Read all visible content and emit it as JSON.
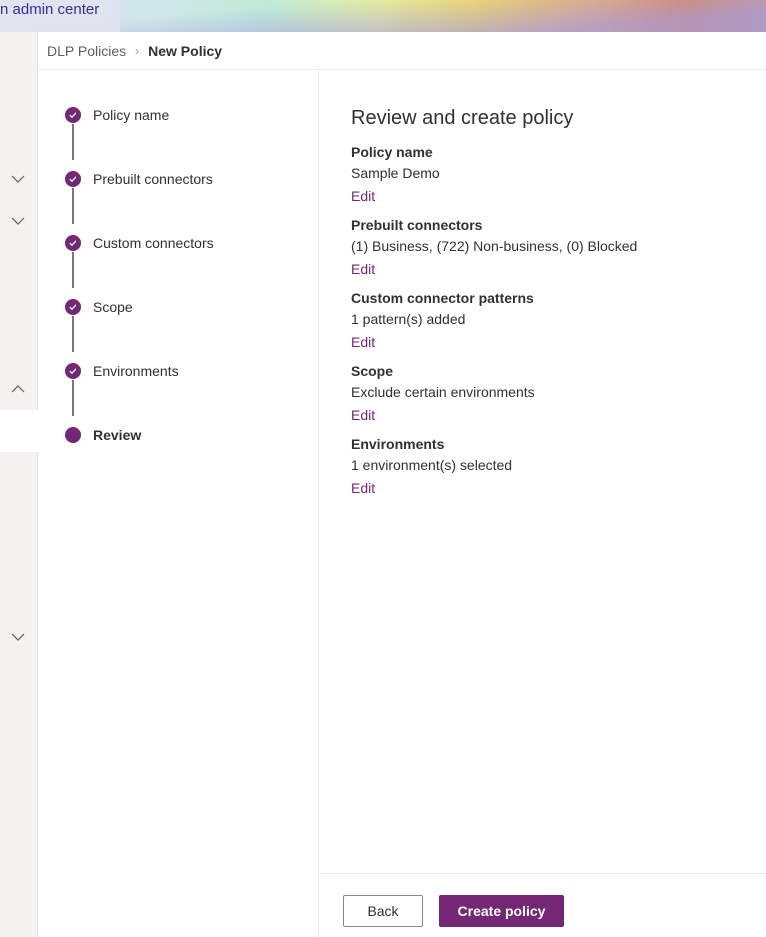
{
  "header": {
    "title": "n admin center"
  },
  "breadcrumb": {
    "parent": "DLP Policies",
    "current": "New Policy"
  },
  "steps": [
    {
      "label": "Policy name",
      "status": "complete"
    },
    {
      "label": "Prebuilt connectors",
      "status": "complete"
    },
    {
      "label": "Custom connectors",
      "status": "complete"
    },
    {
      "label": "Scope",
      "status": "complete"
    },
    {
      "label": "Environments",
      "status": "complete"
    },
    {
      "label": "Review",
      "status": "current"
    }
  ],
  "main": {
    "title": "Review and create policy",
    "sections": [
      {
        "heading": "Policy name",
        "value": "Sample Demo",
        "edit": "Edit"
      },
      {
        "heading": "Prebuilt connectors",
        "value": "(1) Business, (722) Non-business, (0) Blocked",
        "edit": "Edit"
      },
      {
        "heading": "Custom connector patterns",
        "value": "1 pattern(s) added",
        "edit": "Edit"
      },
      {
        "heading": "Scope",
        "value": "Exclude certain environments",
        "edit": "Edit"
      },
      {
        "heading": "Environments",
        "value": "1 environment(s) selected",
        "edit": "Edit"
      }
    ]
  },
  "footer": {
    "back": "Back",
    "create": "Create policy"
  },
  "colors": {
    "accent": "#742774",
    "link": "#742774"
  }
}
